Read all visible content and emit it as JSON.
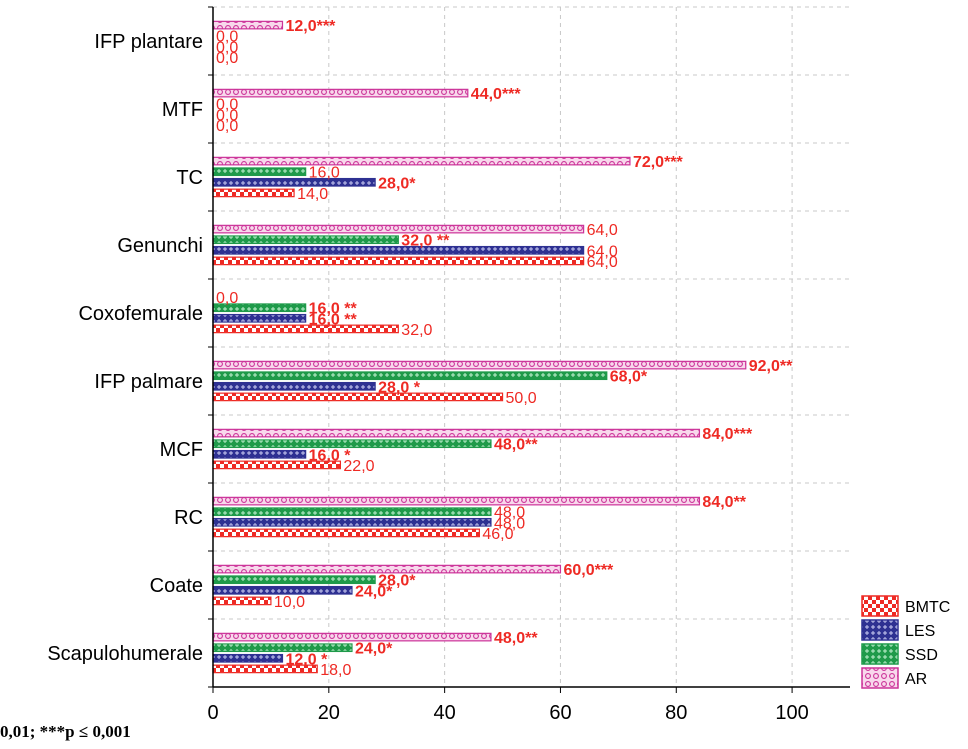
{
  "chart_data": {
    "type": "bar",
    "orientation": "horizontal",
    "categories": [
      "IFP plantare",
      "MTF",
      "TC",
      "Genunchi",
      "Coxofemurale",
      "IFP palmare",
      "MCF",
      "RC",
      "Coate",
      "Scapulohumerale"
    ],
    "series": [
      {
        "name": "AR",
        "color": "#cc3399",
        "pattern": "circles",
        "values": [
          12.0,
          44.0,
          72.0,
          64.0,
          0.0,
          92.0,
          84.0,
          84.0,
          60.0,
          48.0
        ],
        "labels": [
          "12,0***",
          "44,0***",
          "72,0***",
          "64,0",
          "0,0",
          "92,0**",
          "84,0***",
          "84,0**",
          "60,0***",
          "48,0**"
        ]
      },
      {
        "name": "SSD",
        "color": "#1f9a4a",
        "pattern": "crosses",
        "values": [
          0.0,
          0.0,
          16.0,
          32.0,
          16.0,
          68.0,
          48.0,
          48.0,
          28.0,
          24.0
        ],
        "labels": [
          "0,0",
          "0,0",
          "16,0",
          "32,0 **",
          "16,0 **",
          "68,0*",
          "48,0**",
          "48,0",
          "28,0*",
          "24,0*"
        ]
      },
      {
        "name": "LES",
        "color": "#2e3192",
        "pattern": "crosses",
        "values": [
          0.0,
          0.0,
          28.0,
          64.0,
          16.0,
          28.0,
          16.0,
          48.0,
          24.0,
          12.0
        ],
        "labels": [
          "0,0",
          "0,0",
          "28,0*",
          "64,0",
          "16,0 **",
          "28,0 *",
          "16,0 *",
          "48,0",
          "24,0*",
          "12,0 *"
        ]
      },
      {
        "name": "BMTC",
        "color": "#ee2a24",
        "pattern": "checker",
        "values": [
          0.0,
          0.0,
          14.0,
          64.0,
          32.0,
          50.0,
          22.0,
          46.0,
          10.0,
          18.0
        ],
        "labels": [
          "0,0",
          "0,0",
          "14,0",
          "64,0",
          "32,0",
          "50,0",
          "22,0",
          "46,0",
          "10,0",
          "18,0"
        ]
      }
    ],
    "legend_order": [
      "BMTC",
      "LES",
      "SSD",
      "AR"
    ],
    "legend_position": "bottom-right",
    "xlim": [
      0,
      110
    ],
    "xticks": [
      0,
      20,
      40,
      60,
      80,
      100
    ],
    "grid": true,
    "label_color": "#ee2a24"
  },
  "footnote": "0,01; ***p ≤ 0,001"
}
